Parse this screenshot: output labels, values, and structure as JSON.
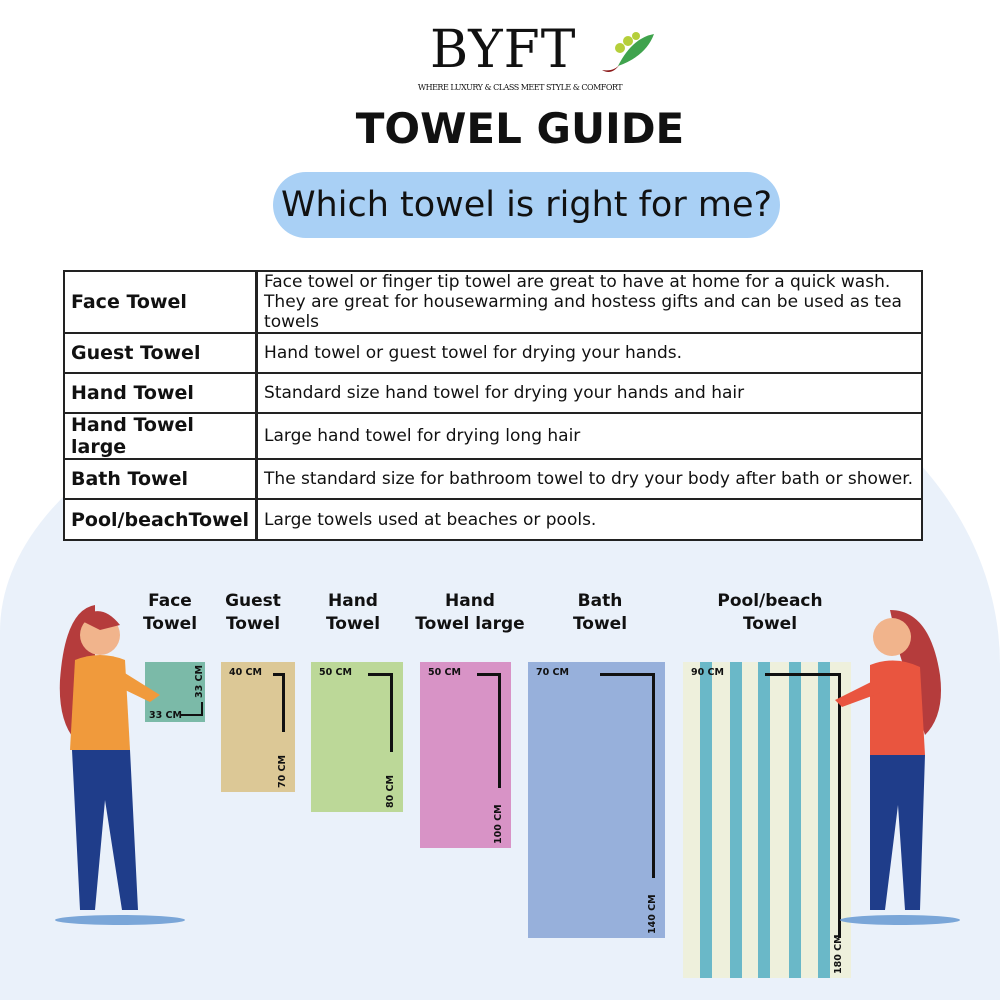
{
  "brand": {
    "name": "BYFT",
    "tagline": "WHERE LUXURY & CLASS MEET STYLE & COMFORT"
  },
  "title": "TOWEL GUIDE",
  "question": "Which towel is right for me?",
  "table": [
    {
      "name": "Face Towel",
      "desc": "Face towel or finger tip towel are great to have at home for a quick wash.",
      "desc2": "They are great for housewarming and hostess gifts and can be used as tea towels"
    },
    {
      "name": "Guest Towel",
      "desc": "Hand towel or guest towel for drying your hands."
    },
    {
      "name": "Hand Towel",
      "desc": "Standard size hand towel for drying your hands and hair"
    },
    {
      "name": "Hand Towel large",
      "desc": "Large hand towel for drying long hair"
    },
    {
      "name": "Bath Towel",
      "desc": "The standard size for bathroom towel to dry your body after bath or shower."
    },
    {
      "name": "Pool/beachTowel",
      "desc": "Large towels used at beaches or pools."
    }
  ],
  "towels": [
    {
      "l1": "Face",
      "l2": "Towel",
      "w": "33 CM",
      "h": "33 CM",
      "color": "#7bbaa8"
    },
    {
      "l1": "Guest",
      "l2": "Towel",
      "w": "40 CM",
      "h": "70 CM",
      "color": "#dcc896"
    },
    {
      "l1": "Hand",
      "l2": "Towel",
      "w": "50 CM",
      "h": "80 CM",
      "color": "#bcd898"
    },
    {
      "l1": "Hand",
      "l2": "Towel large",
      "w": "50 CM",
      "h": "100 CM",
      "color": "#d893c6"
    },
    {
      "l1": "Bath",
      "l2": "Towel",
      "w": "70 CM",
      "h": "140 CM",
      "color": "#97b0db"
    },
    {
      "l1": "Pool/beach",
      "l2": "Towel",
      "w": "90 CM",
      "h": "180 CM",
      "color": "#eef0dc",
      "stripe": "#6ab8c8"
    }
  ]
}
